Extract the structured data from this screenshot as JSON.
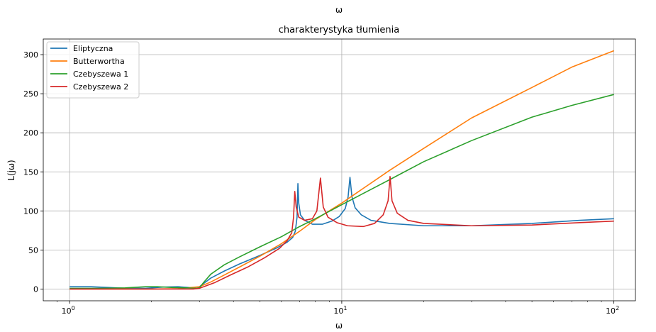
{
  "top_partial": {
    "xlabel": "ω"
  },
  "chart_data": {
    "type": "line",
    "title": "charakterystyka tłumienia",
    "xlabel": "ω",
    "ylabel": "L(jω)",
    "xscale": "log",
    "xlim": [
      0.8,
      120
    ],
    "ylim": [
      -15,
      320
    ],
    "grid": true,
    "legend_position": "top-left",
    "x_ticks": [
      {
        "value": 1,
        "base": "10",
        "exp": "0"
      },
      {
        "value": 10,
        "base": "10",
        "exp": "1"
      },
      {
        "value": 100,
        "base": "10",
        "exp": "2"
      }
    ],
    "y_ticks": [
      0,
      50,
      100,
      150,
      200,
      250,
      300
    ],
    "series": [
      {
        "name": "Eliptyczna",
        "color": "#1f77b4",
        "points": [
          [
            1.0,
            3
          ],
          [
            1.2,
            3
          ],
          [
            1.4,
            2
          ],
          [
            1.6,
            1
          ],
          [
            1.9,
            1
          ],
          [
            2.2,
            2.5
          ],
          [
            2.5,
            3
          ],
          [
            2.75,
            2
          ],
          [
            2.95,
            1
          ],
          [
            3.05,
            5
          ],
          [
            3.3,
            14
          ],
          [
            3.7,
            23
          ],
          [
            4.2,
            32
          ],
          [
            5.0,
            43
          ],
          [
            5.8,
            53
          ],
          [
            6.3,
            60
          ],
          [
            6.6,
            66
          ],
          [
            6.75,
            74
          ],
          [
            6.85,
            92
          ],
          [
            6.9,
            135
          ],
          [
            6.95,
            110
          ],
          [
            7.05,
            95
          ],
          [
            7.3,
            88
          ],
          [
            7.8,
            83
          ],
          [
            8.5,
            83
          ],
          [
            9.2,
            87
          ],
          [
            9.8,
            93
          ],
          [
            10.3,
            103
          ],
          [
            10.55,
            118
          ],
          [
            10.72,
            143
          ],
          [
            10.9,
            118
          ],
          [
            11.2,
            104
          ],
          [
            11.8,
            95
          ],
          [
            12.8,
            88
          ],
          [
            15,
            84
          ],
          [
            20,
            81
          ],
          [
            30,
            81
          ],
          [
            50,
            84
          ],
          [
            75,
            88
          ],
          [
            100,
            90
          ]
        ]
      },
      {
        "name": "Butterwortha",
        "color": "#ff7f0e",
        "points": [
          [
            1.0,
            0
          ],
          [
            1.5,
            0
          ],
          [
            2.0,
            0
          ],
          [
            2.5,
            0.5
          ],
          [
            3.0,
            3
          ],
          [
            3.3,
            9
          ],
          [
            3.7,
            18
          ],
          [
            4.2,
            28
          ],
          [
            5.0,
            42
          ],
          [
            6.0,
            58
          ],
          [
            7.0,
            74
          ],
          [
            8.0,
            89
          ],
          [
            10,
            110
          ],
          [
            15,
            152
          ],
          [
            20,
            180
          ],
          [
            30,
            219
          ],
          [
            50,
            258
          ],
          [
            70,
            284
          ],
          [
            100,
            305
          ]
        ]
      },
      {
        "name": "Czebyszewa 1",
        "color": "#2ca02c",
        "points": [
          [
            1.0,
            1
          ],
          [
            1.3,
            1
          ],
          [
            1.6,
            1.5
          ],
          [
            1.9,
            3
          ],
          [
            2.1,
            3
          ],
          [
            2.4,
            2
          ],
          [
            2.7,
            1.5
          ],
          [
            2.9,
            1
          ],
          [
            3.0,
            1.5
          ],
          [
            3.1,
            8
          ],
          [
            3.3,
            19
          ],
          [
            3.7,
            31
          ],
          [
            4.2,
            41
          ],
          [
            5.0,
            54
          ],
          [
            6.0,
            67
          ],
          [
            7.0,
            80
          ],
          [
            8.0,
            90
          ],
          [
            10,
            108
          ],
          [
            15,
            140
          ],
          [
            20,
            163
          ],
          [
            30,
            190
          ],
          [
            50,
            220
          ],
          [
            70,
            235
          ],
          [
            100,
            249
          ]
        ]
      },
      {
        "name": "Czebyszewa 2",
        "color": "#d62728",
        "points": [
          [
            1.0,
            0
          ],
          [
            1.5,
            0
          ],
          [
            2.0,
            0
          ],
          [
            2.5,
            0
          ],
          [
            2.85,
            0
          ],
          [
            3.0,
            1
          ],
          [
            3.4,
            8
          ],
          [
            3.9,
            18
          ],
          [
            4.5,
            28
          ],
          [
            5.2,
            40
          ],
          [
            5.9,
            52
          ],
          [
            6.3,
            62
          ],
          [
            6.55,
            72
          ],
          [
            6.65,
            92
          ],
          [
            6.72,
            125
          ],
          [
            6.8,
            105
          ],
          [
            6.95,
            92
          ],
          [
            7.3,
            88
          ],
          [
            7.8,
            90
          ],
          [
            8.1,
            100
          ],
          [
            8.35,
            142
          ],
          [
            8.55,
            105
          ],
          [
            8.9,
            92
          ],
          [
            9.6,
            85
          ],
          [
            10.5,
            81
          ],
          [
            12,
            80
          ],
          [
            13.2,
            84
          ],
          [
            14.2,
            95
          ],
          [
            14.8,
            113
          ],
          [
            15.05,
            144
          ],
          [
            15.3,
            113
          ],
          [
            16,
            97
          ],
          [
            17.5,
            88
          ],
          [
            20,
            84
          ],
          [
            30,
            81
          ],
          [
            50,
            82
          ],
          [
            75,
            85
          ],
          [
            100,
            87
          ]
        ]
      }
    ]
  }
}
